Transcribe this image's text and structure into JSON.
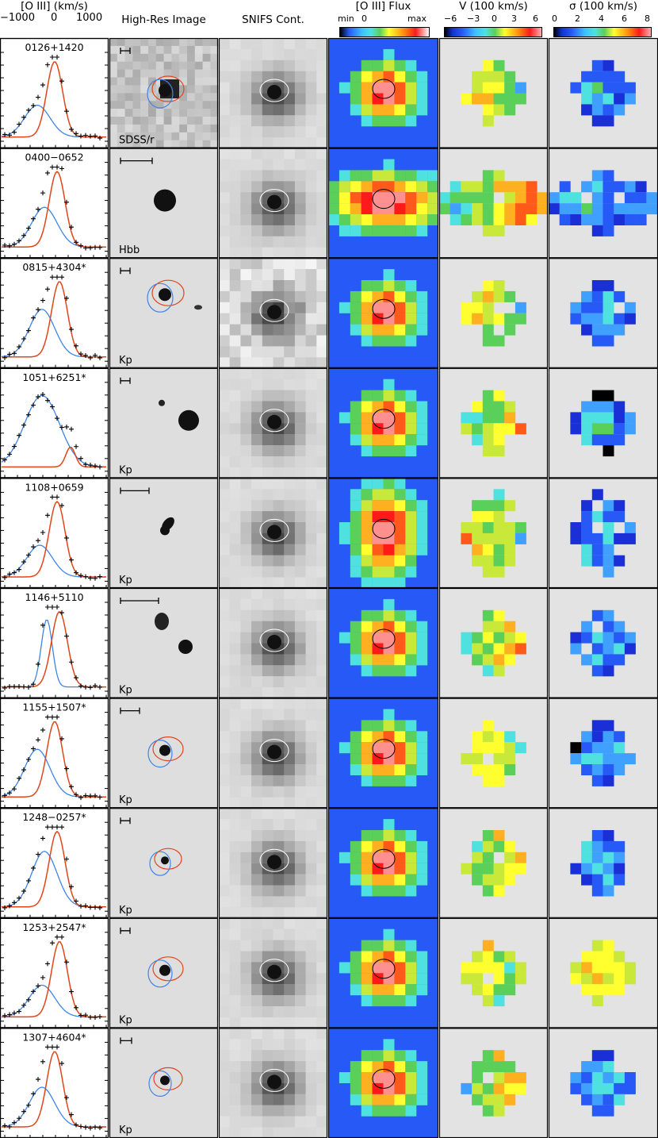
{
  "headers": {
    "spectrum": "[O III] (km/s)",
    "spectrum_ticks": [
      "−1000",
      "0",
      "1000"
    ],
    "highres": "High-Res Image",
    "snifs": "SNIFS Cont.",
    "flux": "[O III] Flux",
    "flux_ticks": [
      "min",
      "0",
      "max"
    ],
    "velocity": "V (100 km/s)",
    "velocity_ticks": [
      "−6",
      "−3",
      "0",
      "3",
      "6"
    ],
    "sigma": "σ (100 km/s)",
    "sigma_ticks": [
      "0",
      "2",
      "4",
      "6",
      "8"
    ]
  },
  "rows": [
    {
      "name": "0126+1420",
      "filter": "SDSS/r"
    },
    {
      "name": "0400−0652",
      "filter": "Hbb"
    },
    {
      "name": "0815+4304*",
      "filter": "Kp"
    },
    {
      "name": "1051+6251*",
      "filter": "Kp"
    },
    {
      "name": "1108+0659",
      "filter": "Kp"
    },
    {
      "name": "1146+5110",
      "filter": "Kp"
    },
    {
      "name": "1155+1507*",
      "filter": "Kp"
    },
    {
      "name": "1248−0257*",
      "filter": "Kp"
    },
    {
      "name": "1253+2547*",
      "filter": "Kp"
    },
    {
      "name": "1307+4604*",
      "filter": "Kp"
    }
  ],
  "colors": {
    "red_component": "#e0461a",
    "blue_component": "#3f84e6",
    "flux_background": "#2659f5",
    "map_background": "#e3e3e3"
  }
}
